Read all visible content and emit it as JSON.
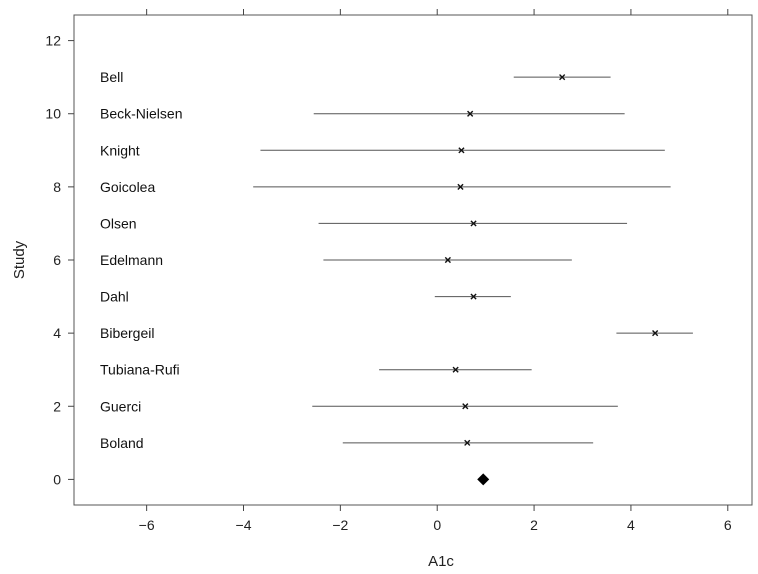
{
  "chart_data": {
    "type": "forest",
    "title": "",
    "xlabel": "A1c",
    "ylabel": "Study",
    "xlim": [
      -7.5,
      6.5
    ],
    "ylim": [
      -0.7,
      12.7
    ],
    "xticks": [
      -6,
      -4,
      -2,
      0,
      2,
      4,
      6
    ],
    "yticks": [
      0,
      2,
      4,
      6,
      8,
      10,
      12
    ],
    "grid": false,
    "studies": [
      {
        "name": "Bell",
        "y": 11,
        "estimate": 2.58,
        "lower": 1.58,
        "upper": 3.58
      },
      {
        "name": "Beck-Nielsen",
        "y": 10,
        "estimate": 0.68,
        "lower": -2.55,
        "upper": 3.87
      },
      {
        "name": "Knight",
        "y": 9,
        "estimate": 0.5,
        "lower": -3.65,
        "upper": 4.7
      },
      {
        "name": "Goicolea",
        "y": 8,
        "estimate": 0.48,
        "lower": -3.8,
        "upper": 4.82
      },
      {
        "name": "Olsen",
        "y": 7,
        "estimate": 0.75,
        "lower": -2.45,
        "upper": 3.92
      },
      {
        "name": "Edelmann",
        "y": 6,
        "estimate": 0.22,
        "lower": -2.35,
        "upper": 2.78
      },
      {
        "name": "Dahl",
        "y": 5,
        "estimate": 0.75,
        "lower": -0.05,
        "upper": 1.52
      },
      {
        "name": "Bibergeil",
        "y": 4,
        "estimate": 4.5,
        "lower": 3.7,
        "upper": 5.28
      },
      {
        "name": "Tubiana-Rufi",
        "y": 3,
        "estimate": 0.38,
        "lower": -1.2,
        "upper": 1.95
      },
      {
        "name": "Guerci",
        "y": 2,
        "estimate": 0.58,
        "lower": -2.58,
        "upper": 3.73
      },
      {
        "name": "Boland",
        "y": 1,
        "estimate": 0.62,
        "lower": -1.95,
        "upper": 3.22
      }
    ],
    "summary": {
      "y": 0,
      "estimate": 0.95
    }
  }
}
